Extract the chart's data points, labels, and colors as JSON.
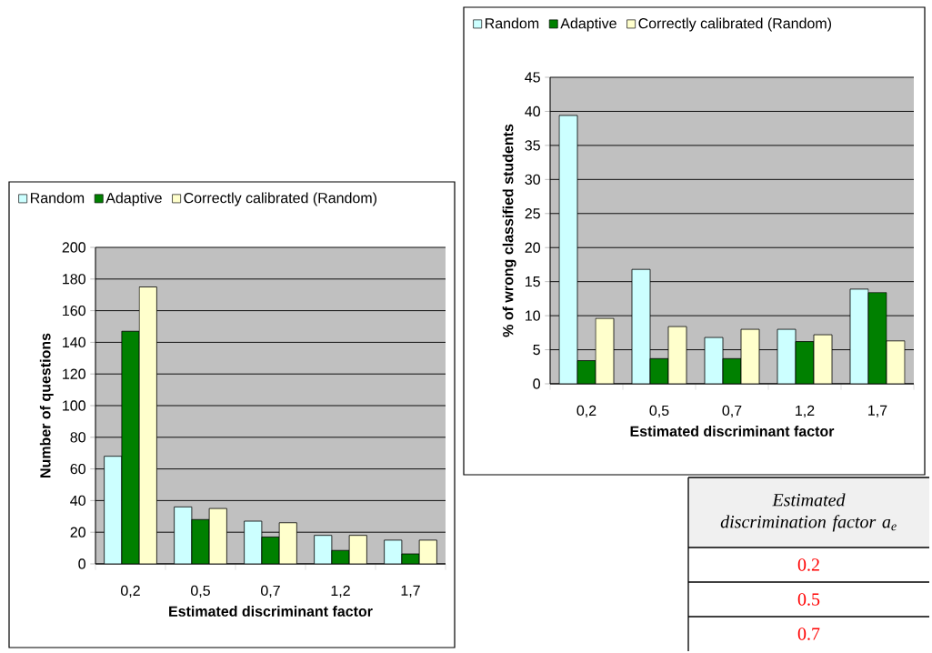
{
  "chart_data": [
    {
      "type": "bar",
      "ylabel": "Number of questions",
      "xlabel": "Estimated discriminant factor",
      "categories": [
        "0,2",
        "0,5",
        "0,7",
        "1,2",
        "1,7"
      ],
      "series": [
        {
          "name": "Random",
          "color": "#ccffff",
          "values": [
            68,
            36,
            27,
            18,
            15
          ]
        },
        {
          "name": "Adaptive",
          "color": "#008000",
          "values": [
            147,
            28,
            17,
            8.5,
            6.3
          ]
        },
        {
          "name": "Correctly calibrated (Random)",
          "color": "#ffffcc",
          "values": [
            175,
            35,
            26,
            18,
            15
          ]
        }
      ],
      "ylim": [
        0,
        200
      ],
      "yticks": [
        0,
        20,
        40,
        60,
        80,
        100,
        120,
        140,
        160,
        180,
        200
      ],
      "grid": "y",
      "legend": "top left"
    },
    {
      "type": "bar",
      "ylabel": "% of wrong classified students",
      "xlabel": "Estimated discriminant factor",
      "categories": [
        "0,2",
        "0,5",
        "0,7",
        "1,2",
        "1,7"
      ],
      "series": [
        {
          "name": "Random",
          "color": "#ccffff",
          "values": [
            39.4,
            16.8,
            6.8,
            8.0,
            13.9
          ]
        },
        {
          "name": "Adaptive",
          "color": "#008000",
          "values": [
            3.4,
            3.7,
            3.7,
            6.2,
            13.4
          ]
        },
        {
          "name": "Correctly calibrated (Random)",
          "color": "#ffffcc",
          "values": [
            9.6,
            8.4,
            8.0,
            7.2,
            6.3
          ]
        }
      ],
      "ylim": [
        0,
        45
      ],
      "yticks": [
        0,
        5,
        10,
        15,
        20,
        25,
        30,
        35,
        40,
        45
      ],
      "grid": "y",
      "legend": "top left"
    },
    {
      "type": "other",
      "title": "Estimated discrimination factor a$_{e}$",
      "annotations": [
        "0.2",
        "0.5",
        "0.7"
      ]
    }
  ]
}
